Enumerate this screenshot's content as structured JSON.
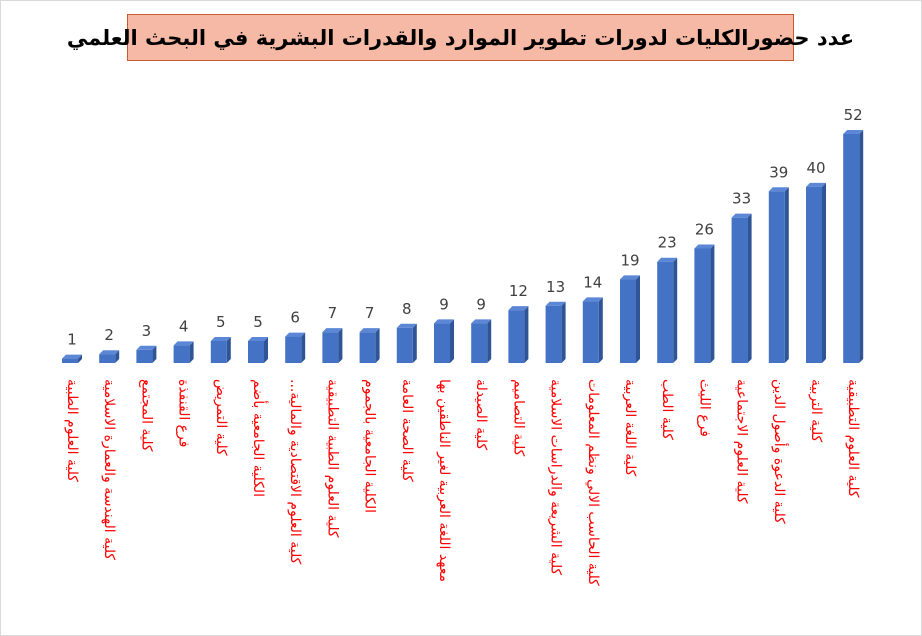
{
  "chart_data": {
    "type": "bar",
    "title": "عدد حضورالكليات لدورات تطوير الموارد والقدرات البشرية في البحث العلمي",
    "categories": [
      "كلية العلوم الطبية",
      "كلية الهندسة والعمارة الاسلامية",
      "كلية المجتمع",
      "فرع القنفذة",
      "كلية التمريض",
      "الكلية الجامعية بأضم",
      "كلية العلوم الاقتصادية والمالية...",
      "كلية العلوم الطبية التطبيقية",
      "الكلية الجامعية بالجموم",
      "كلية الصحة العامة",
      "معهد اللغة العربية لغير الناطقين بها",
      "كلية الصيدلة",
      "كلية التصاميم",
      "كلية الشريعة والدراسات الاسلامية",
      "كلية الحاسب الالي ونظم المعلومات",
      "كلية اللغة العربية",
      "كلية الطب",
      "فرع الليث",
      "كلية العلوم الاجتماعية",
      "كلية الدعوة وأصول الدين",
      "كلية التربية",
      "كلية العلوم التطبيقية"
    ],
    "values": [
      1,
      2,
      3,
      4,
      5,
      5,
      6,
      7,
      7,
      8,
      9,
      9,
      12,
      13,
      14,
      19,
      23,
      26,
      33,
      39,
      40,
      52
    ],
    "ylim": [
      0,
      52
    ],
    "grid": false,
    "legend": "none",
    "colors": {
      "bar_front": "#4472c4",
      "bar_side": "#2f5597",
      "bar_top": "#5b87d6",
      "label": "#ff0000",
      "value": "#404040",
      "title_bg": "#f6b9a5",
      "title_border": "#c65a32"
    }
  }
}
